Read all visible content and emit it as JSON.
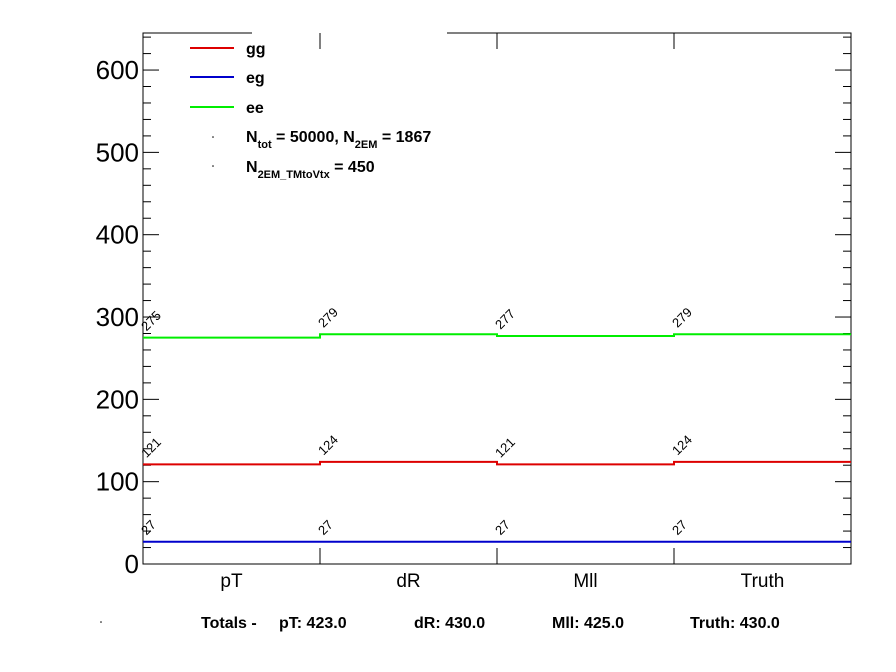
{
  "chart_data": {
    "type": "line",
    "style": "step-histogram",
    "categories": [
      "pT",
      "dR",
      "Mll",
      "Truth"
    ],
    "ylim": [
      0,
      645
    ],
    "yticks": [
      0,
      100,
      200,
      300,
      400,
      500,
      600
    ],
    "series": [
      {
        "name": "gg",
        "color": "#dd0000",
        "values": [
          121,
          124,
          121,
          124
        ]
      },
      {
        "name": "eg",
        "color": "#0000cc",
        "values": [
          27,
          27,
          27,
          27
        ]
      },
      {
        "name": "ee",
        "color": "#00ee00",
        "values": [
          275,
          279,
          277,
          279
        ]
      }
    ],
    "legend_placement": "top-left",
    "annotations": {
      "ntot": {
        "base": "N",
        "sub": "tot",
        "text": " = 50000, N",
        "sub2": "2EM",
        "tail": " = 1867"
      },
      "n2em": {
        "base": "N",
        "sub": "2EM_TMtoVtx",
        "tail": "  = 450"
      }
    },
    "totals": {
      "prefix": "Totals -",
      "items": [
        "pT: 423.0",
        "dR: 430.0",
        "Mll: 425.0",
        "Truth: 430.0"
      ]
    }
  }
}
